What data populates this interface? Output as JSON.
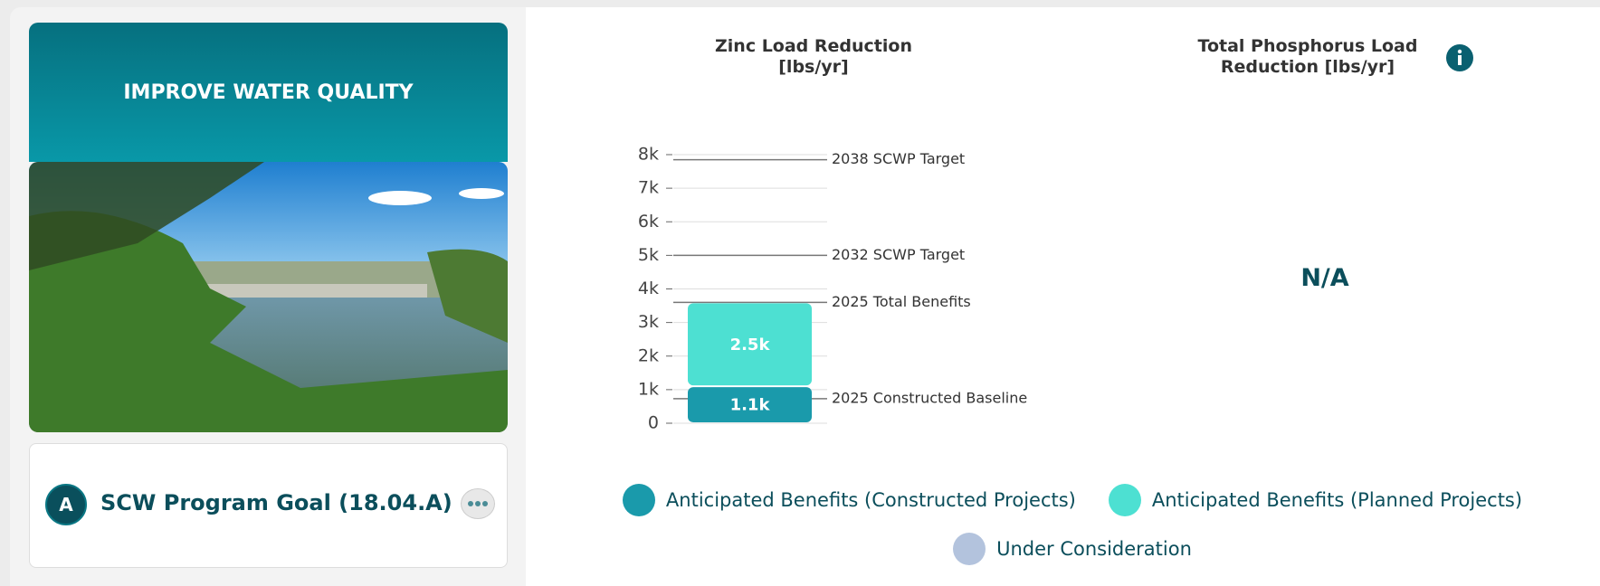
{
  "card": {
    "banner_title": "IMPROVE WATER QUALITY",
    "badge": "A",
    "goal": "SCW Program Goal (18.04.A)"
  },
  "chart_data": [
    {
      "type": "bar",
      "title": "Zinc Load Reduction [lbs/yr]",
      "categories": [
        null
      ],
      "series": [
        {
          "name": "Anticipated Benefits (Constructed Projects)",
          "color": "#1a9aab",
          "values": [
            1100
          ],
          "value_labels": [
            "1.1k"
          ]
        },
        {
          "name": "Anticipated Benefits (Planned Projects)",
          "color": "#4de0d2",
          "values": [
            2500
          ],
          "value_labels": [
            "2.5k"
          ]
        },
        {
          "name": "Under Consideration",
          "color": "#b3c3dd",
          "values": [
            null
          ]
        }
      ],
      "stacked": true,
      "ylim": [
        0,
        8000
      ],
      "yticks": [
        0,
        {
          "value": 1000,
          "label": "1k"
        },
        {
          "value": 2000,
          "label": "2k"
        },
        {
          "value": 3000,
          "label": "3k"
        },
        {
          "value": 4000,
          "label": "4k"
        },
        {
          "value": 5000,
          "label": "5k"
        },
        {
          "value": 6000,
          "label": "6k"
        },
        {
          "value": 7000,
          "label": "7k"
        },
        {
          "value": 8000,
          "label": "8k"
        }
      ],
      "grid": true,
      "reference_lines": [
        {
          "label": "2038 SCWP Target",
          "value": 7850
        },
        {
          "label": "2032 SCWP Target",
          "value": 5000
        },
        {
          "label": "2025 Total Benefits",
          "value": 3600
        },
        {
          "label": "2025 Constructed Baseline",
          "value": 730
        }
      ]
    },
    {
      "type": "empty",
      "title": "Total Phosphorus Load Reduction [lbs/yr]",
      "message": "N/A"
    }
  ]
}
